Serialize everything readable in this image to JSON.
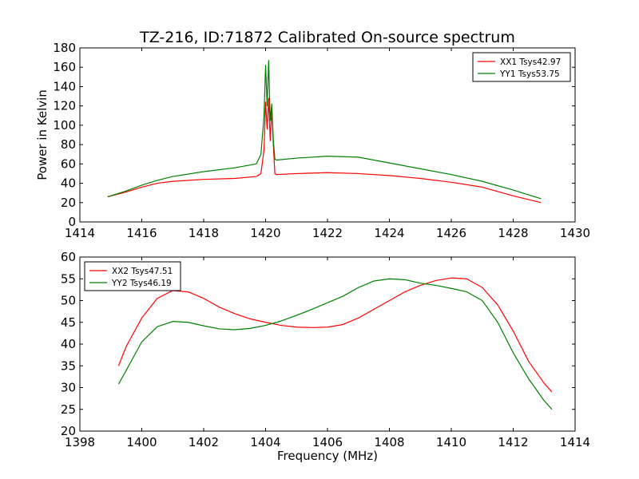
{
  "chart_data": [
    {
      "type": "line",
      "title": "TZ-216, ID:71872 Calibrated On-source spectrum",
      "xlabel": "",
      "ylabel": "Power in Kelvin",
      "xlim": [
        1414,
        1430
      ],
      "ylim": [
        0,
        180
      ],
      "xticks": [
        "1414",
        "1416",
        "1418",
        "1420",
        "1422",
        "1424",
        "1426",
        "1428",
        "1430"
      ],
      "yticks": [
        "0",
        "20",
        "40",
        "60",
        "80",
        "100",
        "120",
        "140",
        "160",
        "180"
      ],
      "legend_position": "top-right",
      "series": [
        {
          "name": "XX1 Tsys42.97",
          "color": "#ff0000",
          "x": [
            1414.9,
            1415.5,
            1416.0,
            1416.5,
            1417.0,
            1418.0,
            1419.0,
            1419.7,
            1419.85,
            1419.95,
            1420.0,
            1420.05,
            1420.1,
            1420.15,
            1420.2,
            1420.25,
            1420.3,
            1420.35,
            1421.0,
            1422.0,
            1423.0,
            1424.0,
            1425.0,
            1426.0,
            1427.0,
            1428.0,
            1428.9
          ],
          "y": [
            26,
            31,
            36,
            40,
            42,
            44,
            45,
            47,
            50,
            75,
            124,
            96,
            128,
            84,
            118,
            80,
            50,
            49,
            50,
            51,
            50,
            48,
            45,
            41,
            36,
            27,
            20
          ]
        },
        {
          "name": "YY1 Tsys53.75",
          "color": "#008000",
          "x": [
            1414.9,
            1415.5,
            1416.0,
            1416.5,
            1417.0,
            1418.0,
            1419.0,
            1419.7,
            1419.85,
            1419.95,
            1420.0,
            1420.05,
            1420.1,
            1420.15,
            1420.2,
            1420.25,
            1420.3,
            1420.35,
            1421.0,
            1422.0,
            1423.0,
            1424.0,
            1425.0,
            1426.0,
            1427.0,
            1428.0,
            1428.9
          ],
          "y": [
            26,
            32,
            38,
            43,
            47,
            52,
            56,
            60,
            70,
            110,
            162,
            120,
            167,
            105,
            122,
            85,
            65,
            64,
            66,
            68,
            67,
            61,
            55,
            49,
            42,
            33,
            24
          ]
        }
      ]
    },
    {
      "type": "line",
      "title": "",
      "xlabel": "Frequency (MHz)",
      "ylabel": "",
      "xlim": [
        1398,
        1414
      ],
      "ylim": [
        20,
        60
      ],
      "xticks": [
        "1398",
        "1400",
        "1402",
        "1404",
        "1406",
        "1408",
        "1410",
        "1412",
        "1414"
      ],
      "yticks": [
        "20",
        "25",
        "30",
        "35",
        "40",
        "45",
        "50",
        "55",
        "60"
      ],
      "legend_position": "top-left",
      "series": [
        {
          "name": "XX2 Tsys47.51",
          "color": "#ff0000",
          "x": [
            1399.25,
            1399.5,
            1400.0,
            1400.5,
            1401.0,
            1401.5,
            1402.0,
            1402.5,
            1403.0,
            1403.5,
            1404.0,
            1404.5,
            1405.0,
            1405.5,
            1406.0,
            1406.5,
            1407.0,
            1407.5,
            1408.0,
            1408.5,
            1409.0,
            1409.5,
            1410.0,
            1410.5,
            1411.0,
            1411.5,
            1412.0,
            1412.5,
            1413.0,
            1413.25
          ],
          "y": [
            35,
            39.5,
            46,
            50.5,
            52.3,
            52,
            50.5,
            48.5,
            47,
            45.8,
            45,
            44.3,
            43.9,
            43.8,
            43.9,
            44.5,
            46,
            48,
            50,
            52,
            53.5,
            54.6,
            55.2,
            55,
            53,
            49,
            43,
            36,
            31,
            29
          ]
        },
        {
          "name": "YY2 Tsys46.19",
          "color": "#008000",
          "x": [
            1399.25,
            1399.5,
            1400.0,
            1400.5,
            1401.0,
            1401.5,
            1402.0,
            1402.5,
            1403.0,
            1403.5,
            1404.0,
            1404.5,
            1405.0,
            1405.5,
            1406.0,
            1406.5,
            1407.0,
            1407.5,
            1408.0,
            1408.5,
            1409.0,
            1409.5,
            1410.0,
            1410.5,
            1411.0,
            1411.5,
            1412.0,
            1412.5,
            1413.0,
            1413.25
          ],
          "y": [
            30.8,
            34,
            40.5,
            44,
            45.2,
            45,
            44.2,
            43.5,
            43.3,
            43.6,
            44.3,
            45.3,
            46.6,
            48,
            49.5,
            51,
            53,
            54.5,
            55,
            54.8,
            54,
            53.5,
            52.8,
            52,
            50,
            45,
            38,
            32,
            27,
            25
          ]
        }
      ]
    }
  ]
}
